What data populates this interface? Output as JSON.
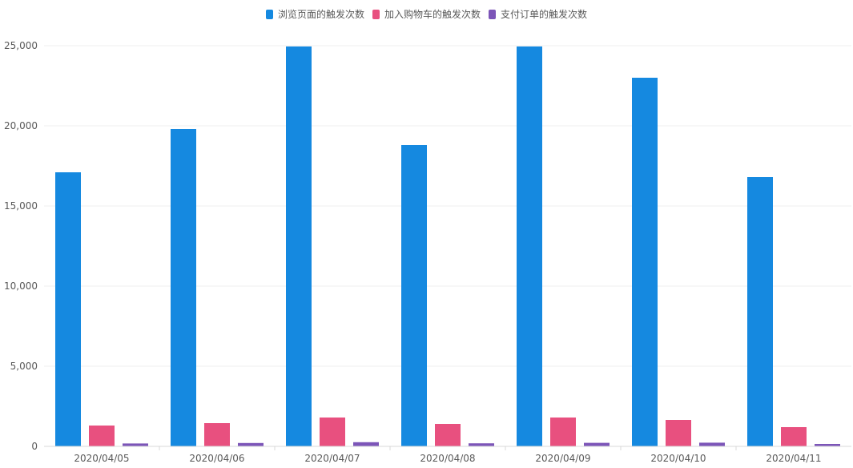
{
  "colors": {
    "series_0": "#1589e0",
    "series_1": "#e8507f",
    "series_2": "#7c55b8",
    "grid": "#efefef",
    "axis": "#d9d9d9",
    "text": "#595959"
  },
  "legend": {
    "items": [
      {
        "label": "浏览页面的触发次数",
        "color": "#1589e0"
      },
      {
        "label": "加入购物车的触发次数",
        "color": "#e8507f"
      },
      {
        "label": "支付订单的触发次数",
        "color": "#7c55b8"
      }
    ]
  },
  "chart_data": {
    "type": "bar",
    "categories": [
      "2020/04/05",
      "2020/04/06",
      "2020/04/07",
      "2020/04/08",
      "2020/04/09",
      "2020/04/10",
      "2020/04/11"
    ],
    "series": [
      {
        "name": "浏览页面的触发次数",
        "values": [
          17100,
          19800,
          24950,
          18800,
          24950,
          23000,
          16800
        ]
      },
      {
        "name": "加入购物车的触发次数",
        "values": [
          1300,
          1450,
          1800,
          1400,
          1800,
          1650,
          1200
        ]
      },
      {
        "name": "支付订单的触发次数",
        "values": [
          180,
          210,
          260,
          190,
          220,
          230,
          150
        ]
      }
    ],
    "y_ticks": [
      "0",
      "5,000",
      "10,000",
      "15,000",
      "20,000",
      "25,000"
    ],
    "ylim": [
      0,
      25000
    ],
    "grid": true,
    "legend_position": "top-center",
    "title": "",
    "xlabel": "",
    "ylabel": ""
  }
}
